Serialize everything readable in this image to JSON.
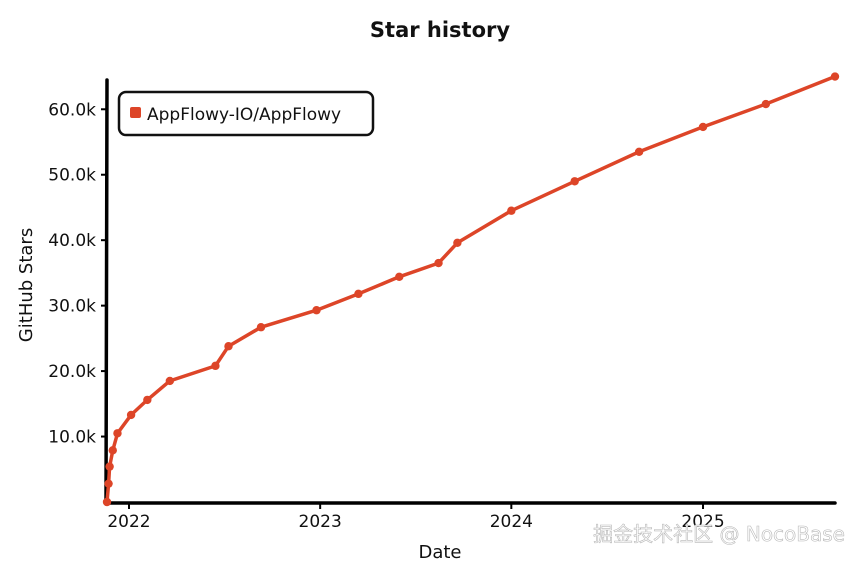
{
  "chart_data": {
    "type": "line",
    "title": "Star history",
    "xlabel": "Date",
    "ylabel": "GitHub Stars",
    "x_tick_labels": [
      "2022",
      "2023",
      "2024",
      "2025"
    ],
    "y_tick_labels": [
      "10.0k",
      "20.0k",
      "30.0k",
      "40.0k",
      "50.0k",
      "60.0k"
    ],
    "x_ticks": [
      "2022-01-01",
      "2023-01-01",
      "2024-01-01",
      "2025-01-01"
    ],
    "y_ticks": [
      10000,
      20000,
      30000,
      40000,
      50000,
      60000
    ],
    "xlim": [
      "2021-11-20",
      "2025-09-10"
    ],
    "ylim": [
      0,
      66000
    ],
    "grid": false,
    "legend_position": "top-left",
    "series": [
      {
        "name": "AppFlowy-IO/AppFlowy",
        "color": "#dd4528",
        "points": [
          {
            "x": "2021-11-20",
            "y": 0
          },
          {
            "x": "2021-11-23",
            "y": 2800
          },
          {
            "x": "2021-11-25",
            "y": 5400
          },
          {
            "x": "2021-12-01",
            "y": 7900
          },
          {
            "x": "2021-12-10",
            "y": 10500
          },
          {
            "x": "2022-01-05",
            "y": 13300
          },
          {
            "x": "2022-02-05",
            "y": 15600
          },
          {
            "x": "2022-03-20",
            "y": 18500
          },
          {
            "x": "2022-06-15",
            "y": 20800
          },
          {
            "x": "2022-07-10",
            "y": 23800
          },
          {
            "x": "2022-09-10",
            "y": 26700
          },
          {
            "x": "2022-12-25",
            "y": 29300
          },
          {
            "x": "2023-03-15",
            "y": 31800
          },
          {
            "x": "2023-06-01",
            "y": 34400
          },
          {
            "x": "2023-08-15",
            "y": 36500
          },
          {
            "x": "2023-09-20",
            "y": 39600
          },
          {
            "x": "2024-01-01",
            "y": 44500
          },
          {
            "x": "2024-05-01",
            "y": 49000
          },
          {
            "x": "2024-09-01",
            "y": 53500
          },
          {
            "x": "2025-01-01",
            "y": 57300
          },
          {
            "x": "2025-05-01",
            "y": 60800
          },
          {
            "x": "2025-09-10",
            "y": 65000
          }
        ]
      }
    ]
  },
  "watermark": "掘金技术社区 @ NocoBase"
}
